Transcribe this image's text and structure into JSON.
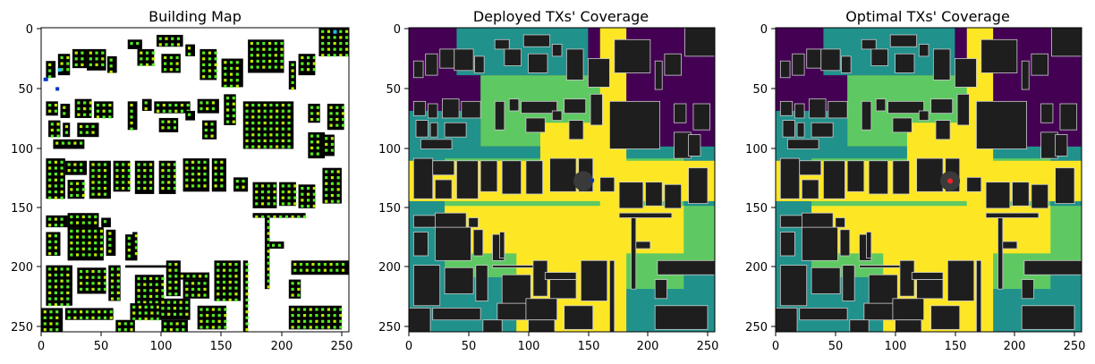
{
  "figure": {
    "colors": {
      "background": "#ffffff",
      "building": "#000000",
      "building_dark": "#1e1e1e",
      "building_outline": "#cccccc",
      "ue_marker": "#55ee22",
      "ue_marker_alt": "#bbee00",
      "tx_marker_blue": "#0033cc",
      "tx_marker_cyan": "#22bbee",
      "coverage_levels": [
        "#440154",
        "#21918c",
        "#5ec962",
        "#fde725"
      ],
      "tx_site": "#3a3a3a",
      "optimal_tx": "#ee2222"
    }
  },
  "chart_data": [
    {
      "type": "heatmap",
      "title": "Building Map",
      "xlim": [
        0,
        256
      ],
      "ylim": [
        256,
        0
      ],
      "x_ticks": [
        "0",
        "50",
        "100",
        "150",
        "200",
        "250"
      ],
      "y_ticks": [
        "0",
        "50",
        "100",
        "150",
        "200",
        "250"
      ],
      "grid": false,
      "legend": "none"
    },
    {
      "type": "heatmap",
      "title": "Deployed TXs' Coverage",
      "xlim": [
        0,
        256
      ],
      "ylim": [
        256,
        0
      ],
      "x_ticks": [
        "0",
        "50",
        "100",
        "150",
        "200",
        "250"
      ],
      "y_ticks": [
        "0",
        "50",
        "100",
        "150",
        "200",
        "250"
      ],
      "grid": false,
      "legend": "none",
      "tx_site": {
        "x": 146,
        "y": 129
      }
    },
    {
      "type": "heatmap",
      "title": "Optimal TXs' Coverage",
      "xlim": [
        0,
        256
      ],
      "ylim": [
        256,
        0
      ],
      "x_ticks": [
        "0",
        "50",
        "100",
        "150",
        "200",
        "250"
      ],
      "y_ticks": [
        "0",
        "50",
        "100",
        "150",
        "200",
        "250"
      ],
      "grid": false,
      "legend": "none",
      "tx_site": {
        "x": 146,
        "y": 129
      }
    }
  ]
}
